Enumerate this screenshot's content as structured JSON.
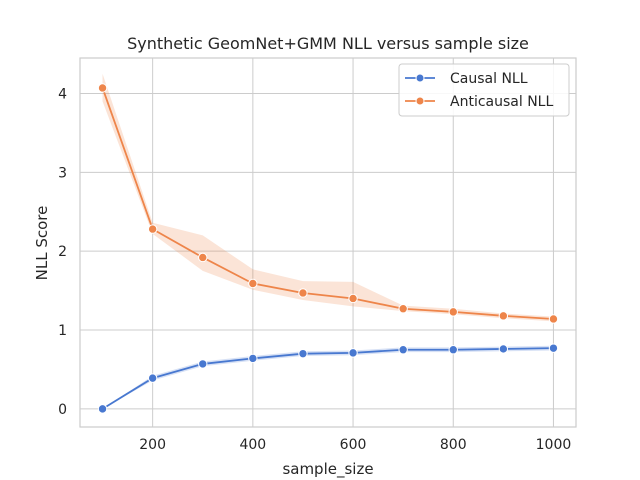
{
  "chart_data": {
    "type": "line",
    "title": "Synthetic GeomNet+GMM NLL versus sample size",
    "xlabel": "sample_size",
    "ylabel": "NLL Score",
    "x": [
      100,
      200,
      300,
      400,
      500,
      600,
      700,
      800,
      900,
      1000
    ],
    "xticks": [
      200,
      400,
      600,
      800,
      1000
    ],
    "yticks": [
      0,
      1,
      2,
      3,
      4
    ],
    "xlim": [
      55,
      1045
    ],
    "ylim": [
      -0.23,
      4.45
    ],
    "grid": true,
    "legend_position": "top-right",
    "series": [
      {
        "name": "Causal NLL",
        "color": "#4878d0",
        "values": [
          0.0,
          0.39,
          0.57,
          0.64,
          0.7,
          0.71,
          0.75,
          0.75,
          0.76,
          0.77
        ],
        "band_low": [
          0.0,
          0.36,
          0.54,
          0.61,
          0.67,
          0.68,
          0.72,
          0.72,
          0.73,
          0.74
        ],
        "band_high": [
          0.0,
          0.42,
          0.6,
          0.67,
          0.73,
          0.74,
          0.78,
          0.78,
          0.79,
          0.8
        ]
      },
      {
        "name": "Anticausal NLL",
        "color": "#ee854a",
        "values": [
          4.07,
          2.28,
          1.92,
          1.59,
          1.47,
          1.4,
          1.27,
          1.23,
          1.18,
          1.14
        ],
        "band_low": [
          3.9,
          2.22,
          1.75,
          1.51,
          1.38,
          1.3,
          1.24,
          1.2,
          1.15,
          1.11
        ],
        "band_high": [
          4.25,
          2.36,
          2.2,
          1.77,
          1.62,
          1.61,
          1.31,
          1.27,
          1.21,
          1.17
        ]
      }
    ]
  }
}
